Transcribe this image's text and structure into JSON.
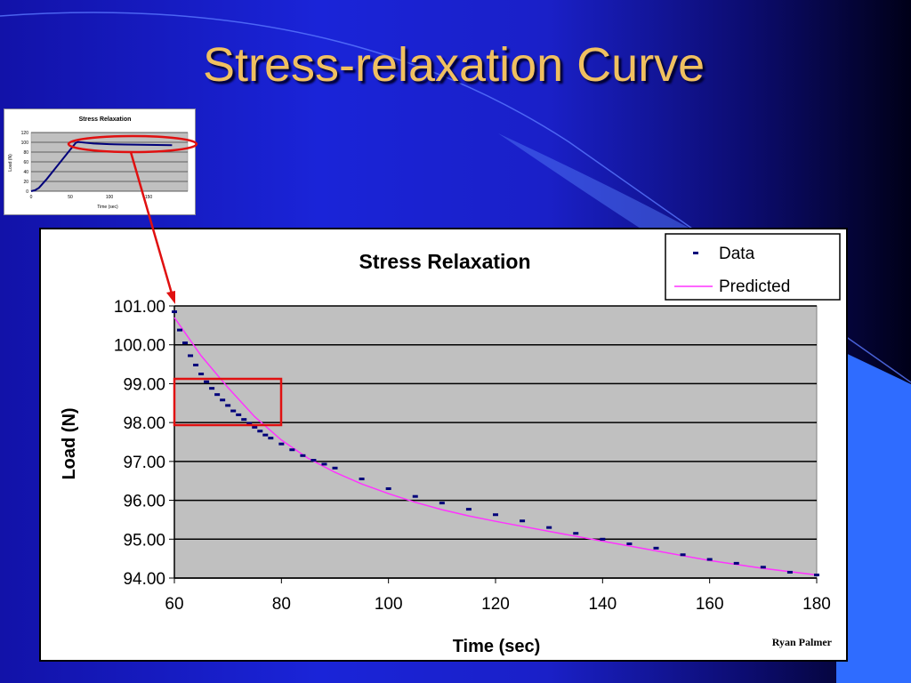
{
  "slide": {
    "title": "Stress-relaxation Curve",
    "author": "Ryan Palmer"
  },
  "colors": {
    "title": "#f0c060",
    "data_series": "#00007a",
    "predicted_series": "#ff33ff",
    "plot_background": "#c0c0c0",
    "highlight": "#e01010"
  },
  "chart_data": [
    {
      "type": "line",
      "role": "thumbnail",
      "title": "Stress Relaxation",
      "xlabel": "Time (sec)",
      "ylabel": "Load (N)",
      "xlim": [
        0,
        200
      ],
      "ylim": [
        0,
        120
      ],
      "xticks": [
        0,
        50,
        100,
        150
      ],
      "yticks": [
        0,
        20,
        40,
        60,
        80,
        100,
        120
      ],
      "grid": true,
      "series": [
        {
          "x": [
            0,
            5,
            10,
            20,
            30,
            40,
            50,
            57,
            60,
            80,
            100,
            120,
            140,
            160,
            180
          ],
          "values": [
            0,
            2,
            7,
            25,
            45,
            65,
            85,
            99,
            100.8,
            97.5,
            96.2,
            95.4,
            94.9,
            94.5,
            94.1
          ]
        }
      ]
    },
    {
      "type": "scatter",
      "role": "main",
      "title": "Stress Relaxation",
      "xlabel": "Time (sec)",
      "ylabel": "Load (N)",
      "xlim": [
        60,
        180
      ],
      "ylim": [
        94,
        101
      ],
      "xticks": [
        "60",
        "80",
        "100",
        "120",
        "140",
        "160",
        "180"
      ],
      "yticks": [
        "94.00",
        "95.00",
        "96.00",
        "97.00",
        "98.00",
        "99.00",
        "100.00",
        "101.00"
      ],
      "grid": true,
      "legend": "top-right",
      "series": [
        {
          "name": "Data",
          "style": "markers",
          "x": [
            60,
            61,
            62,
            63,
            64,
            65,
            66,
            67,
            68,
            69,
            70,
            71,
            72,
            73,
            74,
            75,
            76,
            77,
            78,
            80,
            82,
            84,
            86,
            88,
            90,
            95,
            100,
            105,
            110,
            115,
            120,
            125,
            130,
            135,
            140,
            145,
            150,
            155,
            160,
            165,
            170,
            175,
            180
          ],
          "values": [
            100.85,
            100.38,
            100.05,
            99.72,
            99.48,
            99.25,
            99.05,
            98.88,
            98.72,
            98.58,
            98.44,
            98.3,
            98.2,
            98.08,
            97.98,
            97.88,
            97.78,
            97.68,
            97.6,
            97.45,
            97.3,
            97.15,
            97.03,
            96.93,
            96.83,
            96.55,
            96.3,
            96.1,
            95.93,
            95.77,
            95.63,
            95.47,
            95.3,
            95.15,
            95.0,
            94.88,
            94.77,
            94.6,
            94.48,
            94.38,
            94.28,
            94.15,
            94.08
          ]
        },
        {
          "name": "Predicted",
          "style": "line",
          "x": [
            60,
            65,
            70,
            75,
            80,
            85,
            90,
            95,
            100,
            105,
            110,
            115,
            120,
            130,
            140,
            150,
            160,
            170,
            180
          ],
          "values": [
            100.7,
            99.72,
            98.9,
            98.15,
            97.55,
            97.08,
            96.72,
            96.42,
            96.17,
            95.95,
            95.76,
            95.6,
            95.46,
            95.2,
            94.95,
            94.7,
            94.45,
            94.25,
            94.08
          ]
        }
      ]
    }
  ]
}
